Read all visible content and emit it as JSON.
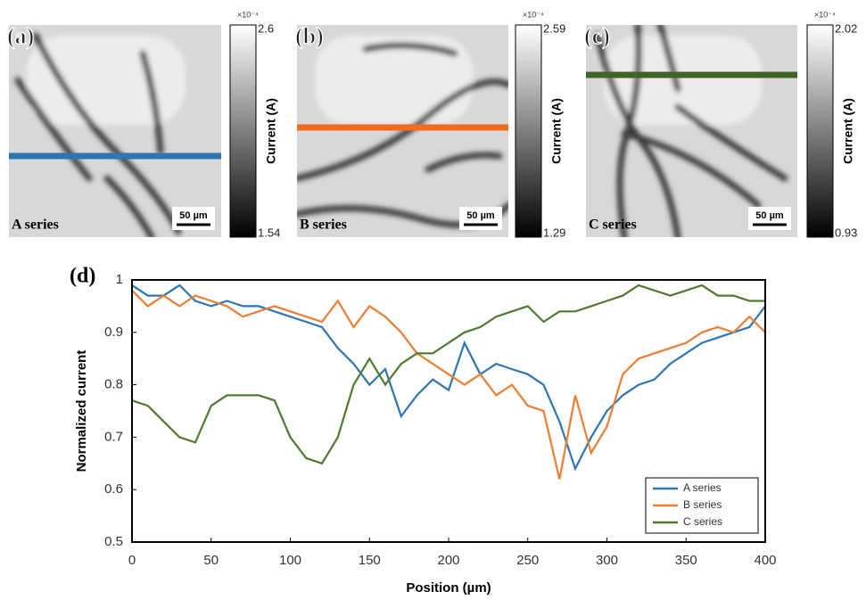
{
  "panels": [
    {
      "label": "(a)",
      "series_label": "A series",
      "scale_bar": "50 µm",
      "line_color": "#2e75b6",
      "colorbar": {
        "exponent": "×10⁻⁴",
        "max": 2.6,
        "min": 1.54,
        "label": "Current (A)"
      }
    },
    {
      "label": "(b)",
      "series_label": "B series",
      "scale_bar": "50 µm",
      "line_color": "#f26b1d",
      "colorbar": {
        "exponent": "×10⁻⁴",
        "max": 2.59,
        "min": 1.29,
        "label": "Current (A)"
      }
    },
    {
      "label": "(c)",
      "series_label": "C series",
      "scale_bar": "50 µm",
      "line_color": "#3f6328",
      "colorbar": {
        "exponent": "×10⁻⁴",
        "max": 2.02,
        "min": 0.93,
        "label": "Current (A)"
      }
    }
  ],
  "chart_data": {
    "type": "line",
    "label": "(d)",
    "xlabel": "Position (µm)",
    "ylabel": "Normalized current",
    "x": [
      0,
      10,
      20,
      30,
      40,
      50,
      60,
      70,
      80,
      90,
      100,
      110,
      120,
      130,
      140,
      150,
      160,
      170,
      180,
      190,
      200,
      210,
      220,
      230,
      240,
      250,
      260,
      270,
      280,
      290,
      300,
      310,
      320,
      330,
      340,
      350,
      360,
      370,
      380,
      390,
      400
    ],
    "series": [
      {
        "name": "A series",
        "color": "#2e75b6",
        "values": [
          0.99,
          0.97,
          0.97,
          0.99,
          0.96,
          0.95,
          0.96,
          0.95,
          0.95,
          0.94,
          0.93,
          0.92,
          0.91,
          0.87,
          0.84,
          0.8,
          0.83,
          0.74,
          0.78,
          0.81,
          0.79,
          0.88,
          0.82,
          0.84,
          0.83,
          0.82,
          0.8,
          0.73,
          0.64,
          0.7,
          0.75,
          0.78,
          0.8,
          0.81,
          0.84,
          0.86,
          0.88,
          0.89,
          0.9,
          0.91,
          0.95
        ]
      },
      {
        "name": "B series",
        "color": "#ed7d31",
        "values": [
          0.98,
          0.95,
          0.97,
          0.95,
          0.97,
          0.96,
          0.95,
          0.93,
          0.94,
          0.95,
          0.94,
          0.93,
          0.92,
          0.96,
          0.91,
          0.95,
          0.93,
          0.9,
          0.86,
          0.84,
          0.82,
          0.8,
          0.82,
          0.78,
          0.8,
          0.76,
          0.75,
          0.62,
          0.78,
          0.67,
          0.72,
          0.82,
          0.85,
          0.86,
          0.87,
          0.88,
          0.9,
          0.91,
          0.9,
          0.93,
          0.9
        ]
      },
      {
        "name": "C series",
        "color": "#4e7a2e",
        "values": [
          0.77,
          0.76,
          0.73,
          0.7,
          0.69,
          0.76,
          0.78,
          0.78,
          0.78,
          0.77,
          0.7,
          0.66,
          0.65,
          0.7,
          0.8,
          0.85,
          0.8,
          0.84,
          0.86,
          0.86,
          0.88,
          0.9,
          0.91,
          0.93,
          0.94,
          0.95,
          0.92,
          0.94,
          0.94,
          0.95,
          0.96,
          0.97,
          0.99,
          0.98,
          0.97,
          0.98,
          0.99,
          0.97,
          0.97,
          0.96,
          0.96
        ]
      }
    ],
    "xlim": [
      0,
      400
    ],
    "xticks": [
      0,
      50,
      100,
      150,
      200,
      250,
      300,
      350,
      400
    ],
    "ylim": [
      0.5,
      1
    ],
    "yticks": [
      0.5,
      0.6,
      0.7,
      0.8,
      0.9,
      1
    ],
    "legend": "lower right"
  }
}
